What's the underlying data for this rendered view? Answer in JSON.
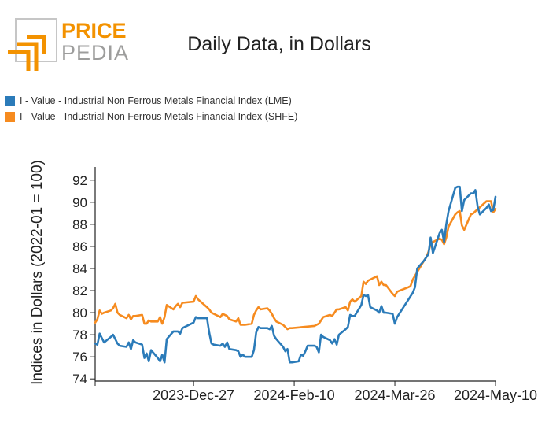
{
  "brand": {
    "line1": "PRICE",
    "line2": "PEDIA",
    "accent": "#f39200",
    "grey": "#9d9d9c"
  },
  "chart_data": {
    "type": "line",
    "title": "Daily Data, in Dollars",
    "ylabel": "Indices in Dollars (2022-01 = 100)",
    "ylim": [
      73.8,
      93.2
    ],
    "yticks": [
      74,
      76,
      78,
      80,
      82,
      84,
      86,
      88,
      90,
      92
    ],
    "x_start": "2023-11-13",
    "x_end": "2024-05-10",
    "xticks": [
      "2023-11-13",
      "2023-12-27",
      "2024-02-10",
      "2024-03-26",
      "2024-05-10"
    ],
    "xtick_labels": [
      "",
      "2023-Dec-27",
      "2024-Feb-10",
      "2024-Mar-26",
      "2024-May-10"
    ],
    "legend_position": "top-left",
    "grid": false,
    "series": [
      {
        "name": "I - Value - Industrial Non Ferrous Metals Financial Index (LME)",
        "color": "#2b7bb9",
        "points": [
          [
            "2023-11-13",
            77.2
          ],
          [
            "2023-11-14",
            77.1
          ],
          [
            "2023-11-15",
            78.1
          ],
          [
            "2023-11-16",
            77.7
          ],
          [
            "2023-11-17",
            77.3
          ],
          [
            "2023-11-20",
            77.8
          ],
          [
            "2023-11-21",
            78.0
          ],
          [
            "2023-11-22",
            77.6
          ],
          [
            "2023-11-23",
            77.2
          ],
          [
            "2023-11-24",
            77.0
          ],
          [
            "2023-11-27",
            76.9
          ],
          [
            "2023-11-28",
            77.3
          ],
          [
            "2023-11-29",
            76.7
          ],
          [
            "2023-11-30",
            77.5
          ],
          [
            "2023-12-01",
            77.3
          ],
          [
            "2023-12-04",
            77.1
          ],
          [
            "2023-12-05",
            75.9
          ],
          [
            "2023-12-06",
            76.3
          ],
          [
            "2023-12-07",
            75.6
          ],
          [
            "2023-12-08",
            76.6
          ],
          [
            "2023-12-11",
            75.9
          ],
          [
            "2023-12-12",
            75.6
          ],
          [
            "2023-12-13",
            76.2
          ],
          [
            "2023-12-14",
            75.5
          ],
          [
            "2023-12-15",
            77.6
          ],
          [
            "2023-12-18",
            78.3
          ],
          [
            "2023-12-19",
            78.3
          ],
          [
            "2023-12-20",
            78.3
          ],
          [
            "2023-12-21",
            78.1
          ],
          [
            "2023-12-22",
            78.6
          ],
          [
            "2023-12-27",
            79.1
          ],
          [
            "2023-12-28",
            79.6
          ],
          [
            "2023-12-29",
            79.5
          ],
          [
            "2024-01-02",
            79.5
          ],
          [
            "2024-01-03",
            78.2
          ],
          [
            "2024-01-04",
            77.2
          ],
          [
            "2024-01-05",
            77.1
          ],
          [
            "2024-01-08",
            77.0
          ],
          [
            "2024-01-09",
            77.2
          ],
          [
            "2024-01-10",
            76.9
          ],
          [
            "2024-01-11",
            77.3
          ],
          [
            "2024-01-12",
            76.7
          ],
          [
            "2024-01-15",
            76.6
          ],
          [
            "2024-01-16",
            76.5
          ],
          [
            "2024-01-17",
            76.0
          ],
          [
            "2024-01-18",
            76.2
          ],
          [
            "2024-01-19",
            76.0
          ],
          [
            "2024-01-22",
            76.0
          ],
          [
            "2024-01-23",
            76.6
          ],
          [
            "2024-01-24",
            78.2
          ],
          [
            "2024-01-25",
            78.7
          ],
          [
            "2024-01-26",
            78.6
          ],
          [
            "2024-01-29",
            78.6
          ],
          [
            "2024-01-30",
            78.5
          ],
          [
            "2024-01-31",
            78.8
          ],
          [
            "2024-02-01",
            77.9
          ],
          [
            "2024-02-02",
            77.6
          ],
          [
            "2024-02-05",
            76.9
          ],
          [
            "2024-02-06",
            76.5
          ],
          [
            "2024-02-07",
            76.7
          ],
          [
            "2024-02-08",
            75.5
          ],
          [
            "2024-02-09",
            75.5
          ],
          [
            "2024-02-12",
            75.6
          ],
          [
            "2024-02-13",
            76.2
          ],
          [
            "2024-02-14",
            76.1
          ],
          [
            "2024-02-15",
            76.5
          ],
          [
            "2024-02-16",
            77.0
          ],
          [
            "2024-02-19",
            77.0
          ],
          [
            "2024-02-20",
            76.9
          ],
          [
            "2024-02-21",
            76.4
          ],
          [
            "2024-02-22",
            78.0
          ],
          [
            "2024-02-23",
            77.8
          ],
          [
            "2024-02-26",
            77.5
          ],
          [
            "2024-02-27",
            77.2
          ],
          [
            "2024-02-28",
            77.6
          ],
          [
            "2024-02-29",
            77.1
          ],
          [
            "2024-03-01",
            78.0
          ],
          [
            "2024-03-04",
            78.5
          ],
          [
            "2024-03-05",
            78.7
          ],
          [
            "2024-03-06",
            79.8
          ],
          [
            "2024-03-07",
            79.7
          ],
          [
            "2024-03-08",
            79.7
          ],
          [
            "2024-03-11",
            80.7
          ],
          [
            "2024-03-12",
            81.6
          ],
          [
            "2024-03-13",
            81.5
          ],
          [
            "2024-03-14",
            81.6
          ],
          [
            "2024-03-15",
            80.5
          ],
          [
            "2024-03-18",
            80.2
          ],
          [
            "2024-03-19",
            80.0
          ],
          [
            "2024-03-20",
            80.6
          ],
          [
            "2024-03-21",
            80.0
          ],
          [
            "2024-03-22",
            80.0
          ],
          [
            "2024-03-25",
            79.9
          ],
          [
            "2024-03-26",
            79.0
          ],
          [
            "2024-03-27",
            79.6
          ],
          [
            "2024-04-03",
            81.8
          ],
          [
            "2024-04-04",
            82.3
          ],
          [
            "2024-04-05",
            84.0
          ],
          [
            "2024-04-08",
            84.7
          ],
          [
            "2024-04-09",
            85.0
          ],
          [
            "2024-04-10",
            85.3
          ],
          [
            "2024-04-11",
            86.8
          ],
          [
            "2024-04-12",
            85.4
          ],
          [
            "2024-04-15",
            87.2
          ],
          [
            "2024-04-16",
            87.5
          ],
          [
            "2024-04-17",
            86.4
          ],
          [
            "2024-04-18",
            88.0
          ],
          [
            "2024-04-19",
            89.2
          ],
          [
            "2024-04-22",
            91.3
          ],
          [
            "2024-04-23",
            91.4
          ],
          [
            "2024-04-24",
            91.4
          ],
          [
            "2024-04-25",
            89.2
          ],
          [
            "2024-04-26",
            90.2
          ],
          [
            "2024-04-29",
            90.8
          ],
          [
            "2024-04-30",
            90.8
          ],
          [
            "2024-05-01",
            91.1
          ],
          [
            "2024-05-02",
            89.6
          ],
          [
            "2024-05-03",
            88.9
          ],
          [
            "2024-05-06",
            89.5
          ],
          [
            "2024-05-07",
            89.8
          ],
          [
            "2024-05-08",
            89.2
          ],
          [
            "2024-05-09",
            89.3
          ],
          [
            "2024-05-10",
            90.5
          ]
        ]
      },
      {
        "name": "I - Value - Industrial Non Ferrous Metals Financial Index (SHFE)",
        "color": "#f68b1f",
        "points": [
          [
            "2023-11-13",
            79.1
          ],
          [
            "2023-11-14",
            79.4
          ],
          [
            "2023-11-15",
            80.2
          ],
          [
            "2023-11-16",
            79.9
          ],
          [
            "2023-11-17",
            80.0
          ],
          [
            "2023-11-20",
            80.2
          ],
          [
            "2023-11-21",
            80.4
          ],
          [
            "2023-11-22",
            80.8
          ],
          [
            "2023-11-23",
            80.0
          ],
          [
            "2023-11-24",
            79.8
          ],
          [
            "2023-11-27",
            79.5
          ],
          [
            "2023-11-28",
            79.8
          ],
          [
            "2023-11-29",
            79.4
          ],
          [
            "2023-11-30",
            79.7
          ],
          [
            "2023-12-01",
            79.7
          ],
          [
            "2023-12-04",
            79.8
          ],
          [
            "2023-12-05",
            79.0
          ],
          [
            "2023-12-06",
            79.0
          ],
          [
            "2023-12-07",
            79.3
          ],
          [
            "2023-12-08",
            79.2
          ],
          [
            "2023-12-11",
            79.2
          ],
          [
            "2023-12-12",
            79.6
          ],
          [
            "2023-12-13",
            79.0
          ],
          [
            "2023-12-14",
            79.6
          ],
          [
            "2023-12-15",
            80.7
          ],
          [
            "2023-12-18",
            80.3
          ],
          [
            "2023-12-19",
            80.6
          ],
          [
            "2023-12-20",
            80.8
          ],
          [
            "2023-12-21",
            80.5
          ],
          [
            "2023-12-22",
            80.9
          ],
          [
            "2023-12-27",
            81.0
          ],
          [
            "2023-12-28",
            81.5
          ],
          [
            "2023-12-29",
            81.2
          ],
          [
            "2024-01-02",
            80.5
          ],
          [
            "2024-01-03",
            80.3
          ],
          [
            "2024-01-04",
            80.0
          ],
          [
            "2024-01-05",
            79.9
          ],
          [
            "2024-01-08",
            79.6
          ],
          [
            "2024-01-09",
            79.9
          ],
          [
            "2024-01-10",
            79.8
          ],
          [
            "2024-01-11",
            79.7
          ],
          [
            "2024-01-12",
            79.4
          ],
          [
            "2024-01-15",
            79.2
          ],
          [
            "2024-01-16",
            79.5
          ],
          [
            "2024-01-17",
            78.9
          ],
          [
            "2024-01-18",
            78.9
          ],
          [
            "2024-01-19",
            78.9
          ],
          [
            "2024-01-22",
            79.0
          ],
          [
            "2024-01-23",
            79.8
          ],
          [
            "2024-01-24",
            80.2
          ],
          [
            "2024-01-25",
            80.5
          ],
          [
            "2024-01-26",
            80.3
          ],
          [
            "2024-01-29",
            80.4
          ],
          [
            "2024-01-30",
            80.2
          ],
          [
            "2024-01-31",
            79.9
          ],
          [
            "2024-02-01",
            79.5
          ],
          [
            "2024-02-02",
            79.2
          ],
          [
            "2024-02-05",
            78.9
          ],
          [
            "2024-02-06",
            78.7
          ],
          [
            "2024-02-07",
            78.5
          ],
          [
            "2024-02-08",
            78.6
          ],
          [
            "2024-02-09",
            78.6
          ],
          [
            "2024-02-19",
            78.8
          ],
          [
            "2024-02-20",
            78.9
          ],
          [
            "2024-02-21",
            79.0
          ],
          [
            "2024-02-22",
            79.3
          ],
          [
            "2024-02-23",
            79.6
          ],
          [
            "2024-02-26",
            79.8
          ],
          [
            "2024-02-27",
            79.7
          ],
          [
            "2024-02-28",
            80.0
          ],
          [
            "2024-02-29",
            80.3
          ],
          [
            "2024-03-01",
            80.3
          ],
          [
            "2024-03-04",
            80.5
          ],
          [
            "2024-03-05",
            80.2
          ],
          [
            "2024-03-06",
            81.0
          ],
          [
            "2024-03-07",
            81.2
          ],
          [
            "2024-03-08",
            81.0
          ],
          [
            "2024-03-11",
            81.5
          ],
          [
            "2024-03-12",
            82.8
          ],
          [
            "2024-03-13",
            82.6
          ],
          [
            "2024-03-14",
            82.9
          ],
          [
            "2024-03-15",
            83.0
          ],
          [
            "2024-03-18",
            83.3
          ],
          [
            "2024-03-19",
            82.5
          ],
          [
            "2024-03-20",
            82.8
          ],
          [
            "2024-03-21",
            82.5
          ],
          [
            "2024-03-22",
            82.5
          ],
          [
            "2024-03-25",
            81.7
          ],
          [
            "2024-03-26",
            81.5
          ],
          [
            "2024-03-27",
            81.9
          ],
          [
            "2024-04-01",
            82.3
          ],
          [
            "2024-04-02",
            82.4
          ],
          [
            "2024-04-03",
            83.0
          ],
          [
            "2024-04-08",
            84.7
          ],
          [
            "2024-04-09",
            85.0
          ],
          [
            "2024-04-10",
            85.5
          ],
          [
            "2024-04-11",
            86.2
          ],
          [
            "2024-04-12",
            86.4
          ],
          [
            "2024-04-15",
            86.7
          ],
          [
            "2024-04-16",
            86.6
          ],
          [
            "2024-04-17",
            86.2
          ],
          [
            "2024-04-18",
            86.8
          ],
          [
            "2024-04-19",
            87.8
          ],
          [
            "2024-04-22",
            88.9
          ],
          [
            "2024-04-23",
            89.1
          ],
          [
            "2024-04-24",
            89.2
          ],
          [
            "2024-04-25",
            87.9
          ],
          [
            "2024-04-26",
            87.5
          ],
          [
            "2024-04-29",
            88.9
          ],
          [
            "2024-04-30",
            89.0
          ],
          [
            "2024-05-06",
            90.1
          ],
          [
            "2024-05-07",
            90.1
          ],
          [
            "2024-05-08",
            90.1
          ],
          [
            "2024-05-09",
            89.1
          ],
          [
            "2024-05-10",
            89.4
          ]
        ]
      }
    ]
  }
}
